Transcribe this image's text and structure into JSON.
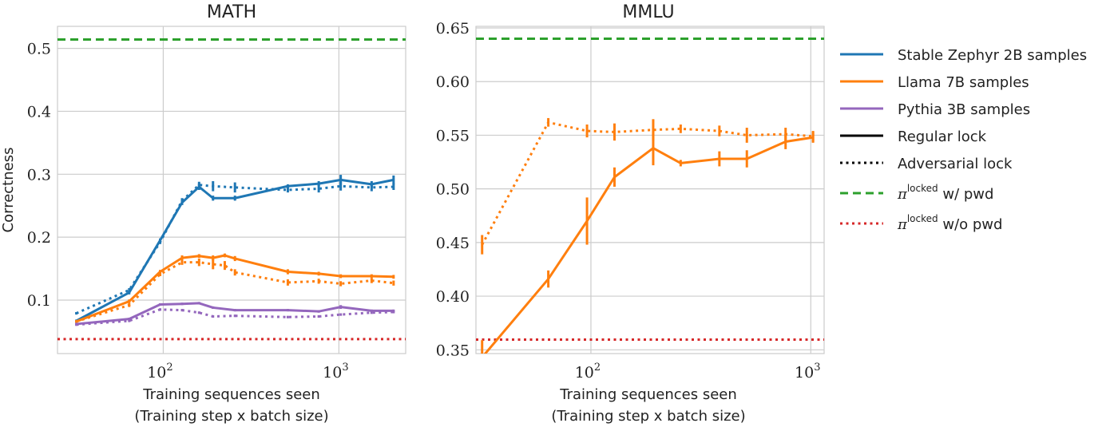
{
  "chart_data": [
    {
      "type": "line",
      "title": "MATH",
      "xlabel": [
        "Training sequences seen",
        "(Training step x batch size)"
      ],
      "ylabel": "Correctness",
      "xscale": "log",
      "xlim": [
        25,
        2400
      ],
      "ylim": [
        0.015,
        0.535
      ],
      "yticks": [
        0.1,
        0.2,
        0.3,
        0.4,
        0.5
      ],
      "ytick_labels": [
        "0.1",
        "0.2",
        "0.3",
        "0.4",
        "0.5"
      ],
      "xticks": [
        {
          "value": 100,
          "base": "10",
          "exp": "2"
        },
        {
          "value": 1000,
          "base": "10",
          "exp": "3"
        }
      ],
      "grid": true,
      "hlines": [
        {
          "key": "pwd",
          "y": 0.514
        },
        {
          "key": "nopwd",
          "y": 0.038
        }
      ],
      "series": [
        {
          "key": "zephyr",
          "style": "solid",
          "x": [
            32,
            64,
            96,
            128,
            160,
            192,
            256,
            512,
            768,
            1024,
            1536,
            2048
          ],
          "y": [
            0.067,
            0.112,
            0.195,
            0.255,
            0.28,
            0.262,
            0.262,
            0.281,
            0.285,
            0.291,
            0.284,
            0.291
          ],
          "err": [
            0.002,
            0.003,
            0.003,
            0.004,
            0.005,
            0.004,
            0.004,
            0.003,
            0.004,
            0.008,
            0.005,
            0.007
          ]
        },
        {
          "key": "zephyr",
          "style": "dotted",
          "x": [
            32,
            64,
            96,
            128,
            160,
            192,
            256,
            512,
            768,
            1024,
            1536,
            2048
          ],
          "y": [
            0.079,
            0.116,
            0.192,
            0.258,
            0.283,
            0.281,
            0.279,
            0.275,
            0.277,
            0.281,
            0.279,
            0.28
          ],
          "err": [
            0.002,
            0.003,
            0.003,
            0.004,
            0.005,
            0.008,
            0.008,
            0.004,
            0.006,
            0.007,
            0.006,
            0.005
          ]
        },
        {
          "key": "llama",
          "style": "solid",
          "x": [
            32,
            64,
            96,
            128,
            160,
            192,
            224,
            256,
            512,
            768,
            1024,
            1536,
            2048
          ],
          "y": [
            0.066,
            0.098,
            0.145,
            0.167,
            0.17,
            0.167,
            0.171,
            0.166,
            0.145,
            0.142,
            0.138,
            0.138,
            0.137
          ],
          "err": [
            0.002,
            0.003,
            0.003,
            0.004,
            0.003,
            0.004,
            0.003,
            0.004,
            0.004,
            0.003,
            0.003,
            0.003,
            0.003
          ]
        },
        {
          "key": "llama",
          "style": "dotted",
          "x": [
            32,
            64,
            96,
            128,
            160,
            192,
            224,
            256,
            512,
            768,
            1024,
            1536,
            2048
          ],
          "y": [
            0.066,
            0.092,
            0.141,
            0.16,
            0.16,
            0.157,
            0.155,
            0.144,
            0.128,
            0.13,
            0.126,
            0.131,
            0.127
          ],
          "err": [
            0.002,
            0.003,
            0.003,
            0.004,
            0.006,
            0.008,
            0.007,
            0.005,
            0.005,
            0.004,
            0.004,
            0.004,
            0.004
          ]
        },
        {
          "key": "pythia",
          "style": "solid",
          "x": [
            32,
            64,
            96,
            128,
            160,
            192,
            256,
            512,
            768,
            1024,
            1536,
            2048
          ],
          "y": [
            0.062,
            0.07,
            0.093,
            0.094,
            0.095,
            0.088,
            0.084,
            0.084,
            0.082,
            0.089,
            0.083,
            0.083
          ],
          "err": [
            0.002,
            0.002,
            0.002,
            0.002,
            0.002,
            0.002,
            0.002,
            0.002,
            0.002,
            0.003,
            0.002,
            0.002
          ]
        },
        {
          "key": "pythia",
          "style": "dotted",
          "x": [
            32,
            64,
            96,
            128,
            160,
            192,
            256,
            512,
            768,
            1024,
            1536,
            2048
          ],
          "y": [
            0.061,
            0.067,
            0.085,
            0.084,
            0.08,
            0.074,
            0.075,
            0.073,
            0.074,
            0.077,
            0.08,
            0.081
          ],
          "err": [
            0.002,
            0.002,
            0.002,
            0.002,
            0.002,
            0.002,
            0.002,
            0.002,
            0.002,
            0.002,
            0.002,
            0.002
          ]
        }
      ]
    },
    {
      "type": "line",
      "title": "MMLU",
      "xlabel": [
        "Training sequences seen",
        "(Training step x batch size)"
      ],
      "ylabel": "",
      "xscale": "log",
      "xlim": [
        30,
        1150
      ],
      "ylim": [
        0.3465,
        0.6515
      ],
      "yticks": [
        0.35,
        0.4,
        0.45,
        0.5,
        0.55,
        0.6,
        0.65
      ],
      "ytick_labels": [
        "0.35",
        "0.40",
        "0.45",
        "0.50",
        "0.55",
        "0.60",
        "0.65"
      ],
      "xticks": [
        {
          "value": 100,
          "base": "10",
          "exp": "2"
        },
        {
          "value": 1000,
          "base": "10",
          "exp": "3"
        }
      ],
      "grid": true,
      "hlines": [
        {
          "key": "pwd",
          "y": 0.64
        },
        {
          "key": "nopwd",
          "y": 0.3595
        }
      ],
      "series": [
        {
          "key": "llama",
          "style": "solid",
          "x": [
            32,
            64,
            96,
            128,
            192,
            256,
            384,
            512,
            768,
            1024
          ],
          "y": [
            0.343,
            0.416,
            0.47,
            0.511,
            0.538,
            0.524,
            0.528,
            0.528,
            0.544,
            0.548
          ],
          "err": [
            0.016,
            0.008,
            0.022,
            0.009,
            0.016,
            0.003,
            0.007,
            0.008,
            0.007,
            0.005
          ]
        },
        {
          "key": "llama",
          "style": "dotted",
          "x": [
            32,
            64,
            96,
            128,
            192,
            256,
            384,
            512,
            768,
            1024
          ],
          "y": [
            0.448,
            0.562,
            0.554,
            0.553,
            0.555,
            0.556,
            0.554,
            0.55,
            0.551,
            0.549
          ],
          "err": [
            0.009,
            0.004,
            0.006,
            0.008,
            0.01,
            0.004,
            0.005,
            0.007,
            0.006,
            0.005
          ]
        }
      ]
    }
  ],
  "legend": {
    "placement": "right",
    "items": [
      {
        "key": "zephyr",
        "label": "Stable Zephyr 2B samples",
        "color": "#1f77b4",
        "dash": "solid"
      },
      {
        "key": "llama",
        "label": "Llama 7B samples",
        "color": "#ff7f0e",
        "dash": "solid"
      },
      {
        "key": "pythia",
        "label": "Pythia 3B samples",
        "color": "#9467bd",
        "dash": "solid"
      },
      {
        "key": "regular",
        "label": "Regular lock",
        "color": "#000000",
        "dash": "solid"
      },
      {
        "key": "adversarial",
        "label": "Adversarial lock",
        "color": "#000000",
        "dash": "dotted"
      },
      {
        "key": "pwd",
        "label_pi": "π",
        "label_sup": "locked",
        "label_rest": " w/ pwd",
        "color": "#2ca02c",
        "dash": "dashed"
      },
      {
        "key": "nopwd",
        "label_pi": "π",
        "label_sup": "locked",
        "label_rest": " w/o pwd",
        "color": "#d62728",
        "dash": "dotted"
      }
    ]
  },
  "colors": {
    "zephyr": "#1f77b4",
    "llama": "#ff7f0e",
    "pythia": "#9467bd",
    "pwd": "#2ca02c",
    "nopwd": "#d62728",
    "grid": "#cccccc",
    "spine": "#cccccc"
  }
}
